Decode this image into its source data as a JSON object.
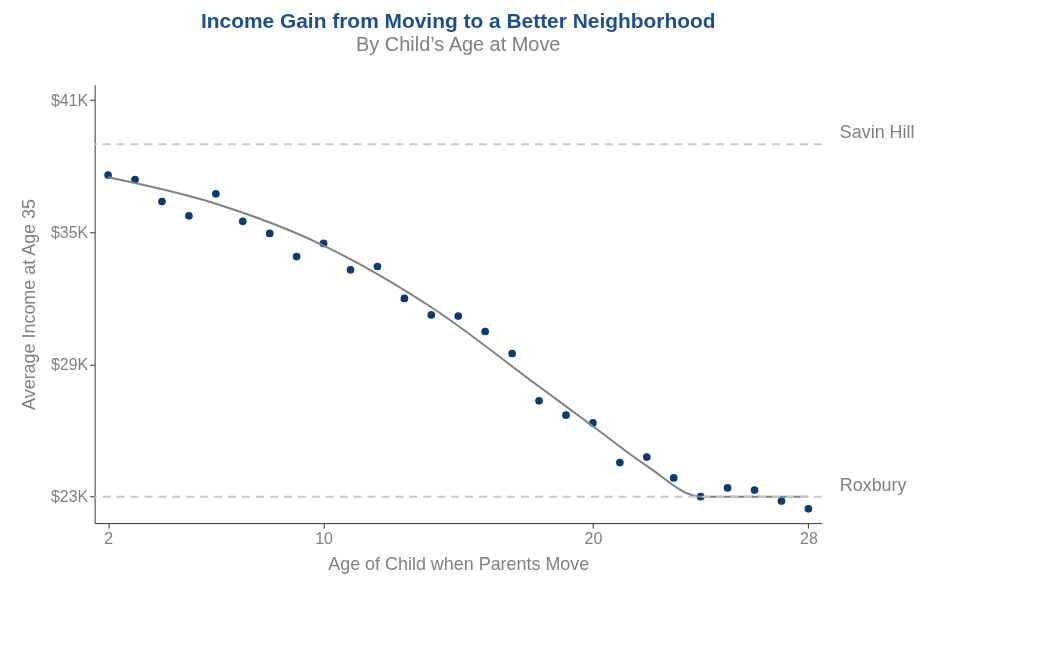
{
  "chart_data": {
    "type": "scatter",
    "title": "Income Gain from Moving to a Better Neighborhood",
    "subtitle": "By Child’s Age at Move",
    "xlabel": "Age of Child when Parents Move",
    "ylabel": "Average Income at Age 35",
    "x": [
      2,
      3,
      4,
      5,
      6,
      7,
      8,
      9,
      10,
      11,
      12,
      13,
      14,
      15,
      16,
      17,
      18,
      19,
      20,
      21,
      22,
      23,
      24,
      25,
      26,
      27,
      28
    ],
    "series": [
      {
        "color": "#0d3b6e",
        "marker": "circle",
        "values": [
          37.6,
          37.4,
          36.4,
          35.75,
          36.75,
          35.5,
          34.95,
          33.9,
          34.5,
          33.3,
          33.45,
          32.0,
          31.25,
          31.2,
          30.5,
          29.5,
          27.35,
          26.7,
          26.35,
          24.55,
          24.8,
          23.85,
          23.0,
          23.4,
          23.3,
          22.8,
          22.45
        ]
      },
      {
        "type": "line",
        "color": "#808080",
        "x": [
          2,
          6,
          10,
          14,
          18,
          20,
          22,
          24,
          28
        ],
        "values": [
          37.5,
          36.3,
          34.4,
          31.6,
          28.0,
          26.2,
          24.4,
          23.0,
          23.0
        ]
      }
    ],
    "xlim": [
      1.5,
      28.5
    ],
    "xticks": [
      2,
      10,
      20,
      28
    ],
    "ylim": [
      21.8,
      41.7
    ],
    "yticks": [
      {
        "value": 23,
        "label": "$23K"
      },
      {
        "value": 29,
        "label": "$29K"
      },
      {
        "value": 35,
        "label": "$35K"
      },
      {
        "value": 41,
        "label": "$41K"
      }
    ],
    "ref_lines": [
      {
        "axis": "y",
        "value": 39.0,
        "label": "Savin Hill",
        "color": "#c8c8c8",
        "line_style": "dashed"
      },
      {
        "axis": "y",
        "value": 23.0,
        "label": "Roxbury",
        "color": "#c8c8c8",
        "line_style": "dashed"
      }
    ],
    "grid": false
  }
}
